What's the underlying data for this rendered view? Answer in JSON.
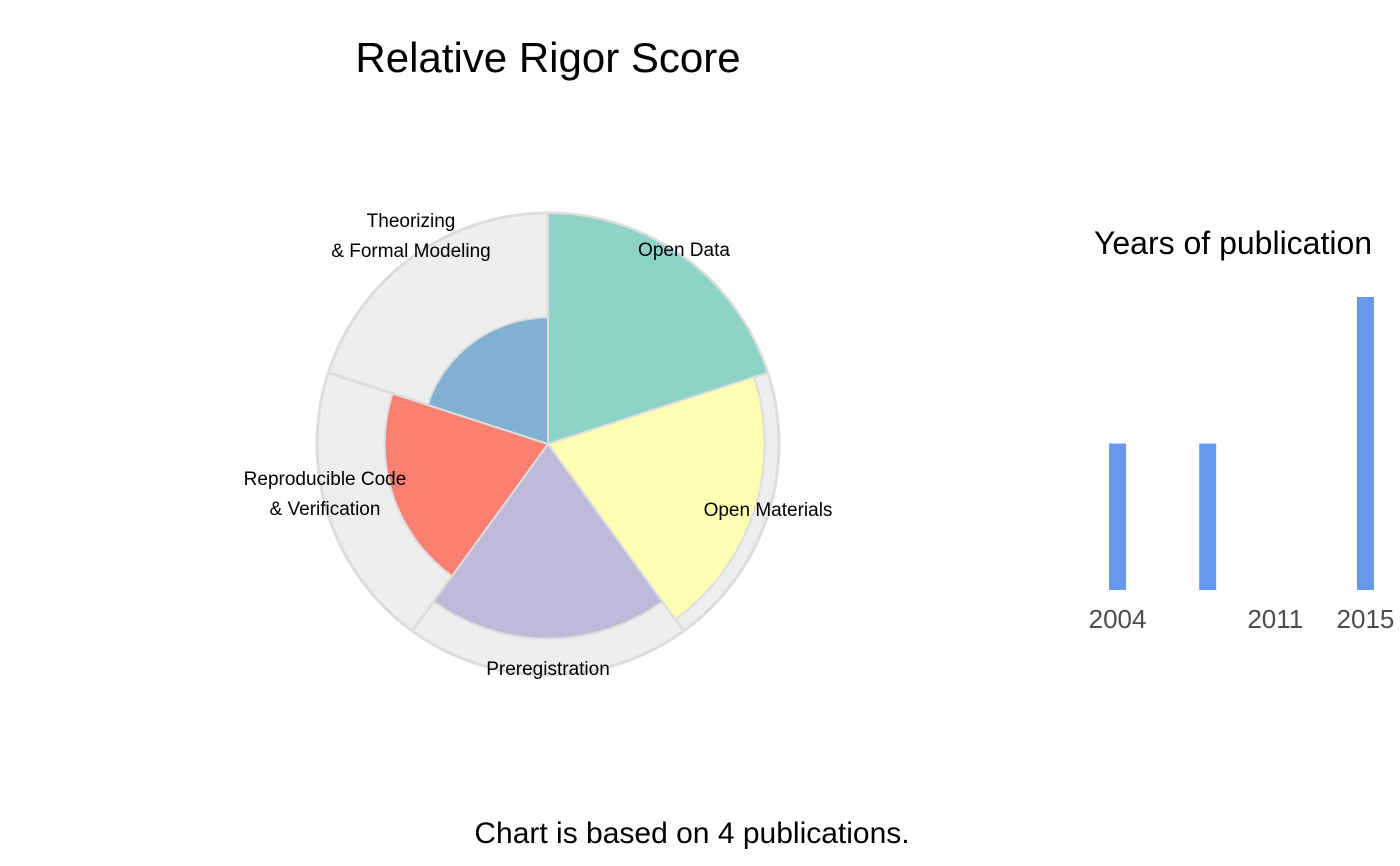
{
  "chart_data": [
    {
      "type": "polar-area",
      "title": "Relative Rigor Score",
      "max_value": 1,
      "grid": true,
      "categories": [
        {
          "label_lines": [
            "Open Data"
          ],
          "value": 1.0,
          "color": "#8DD3C7"
        },
        {
          "label_lines": [
            "Open Materials"
          ],
          "value": 0.88,
          "color": "#FFFFB3"
        },
        {
          "label_lines": [
            "Preregistration"
          ],
          "value": 0.71,
          "color": "#BEBADA"
        },
        {
          "label_lines": [
            "Reproducible Code",
            "& Verification"
          ],
          "value": 0.5,
          "color": "#FB8072"
        },
        {
          "label_lines": [
            "Theorizing",
            "& Formal Modeling"
          ],
          "value": 0.3,
          "color": "#80B1D3"
        }
      ],
      "background_color": "#EEEEEE",
      "outline_color": "#DDDDDD"
    },
    {
      "type": "bar",
      "title": "Years of publication",
      "categories": [
        "2004",
        "2008",
        "2015"
      ],
      "values": [
        1,
        1,
        2
      ],
      "xlim": [
        2003,
        2016
      ],
      "tick_labels": [
        "2004",
        "2011",
        "2015"
      ],
      "bar_color": "#6699EE",
      "ylabel": "",
      "xlabel": ""
    }
  ],
  "footer": "Chart is based on 4 publications."
}
